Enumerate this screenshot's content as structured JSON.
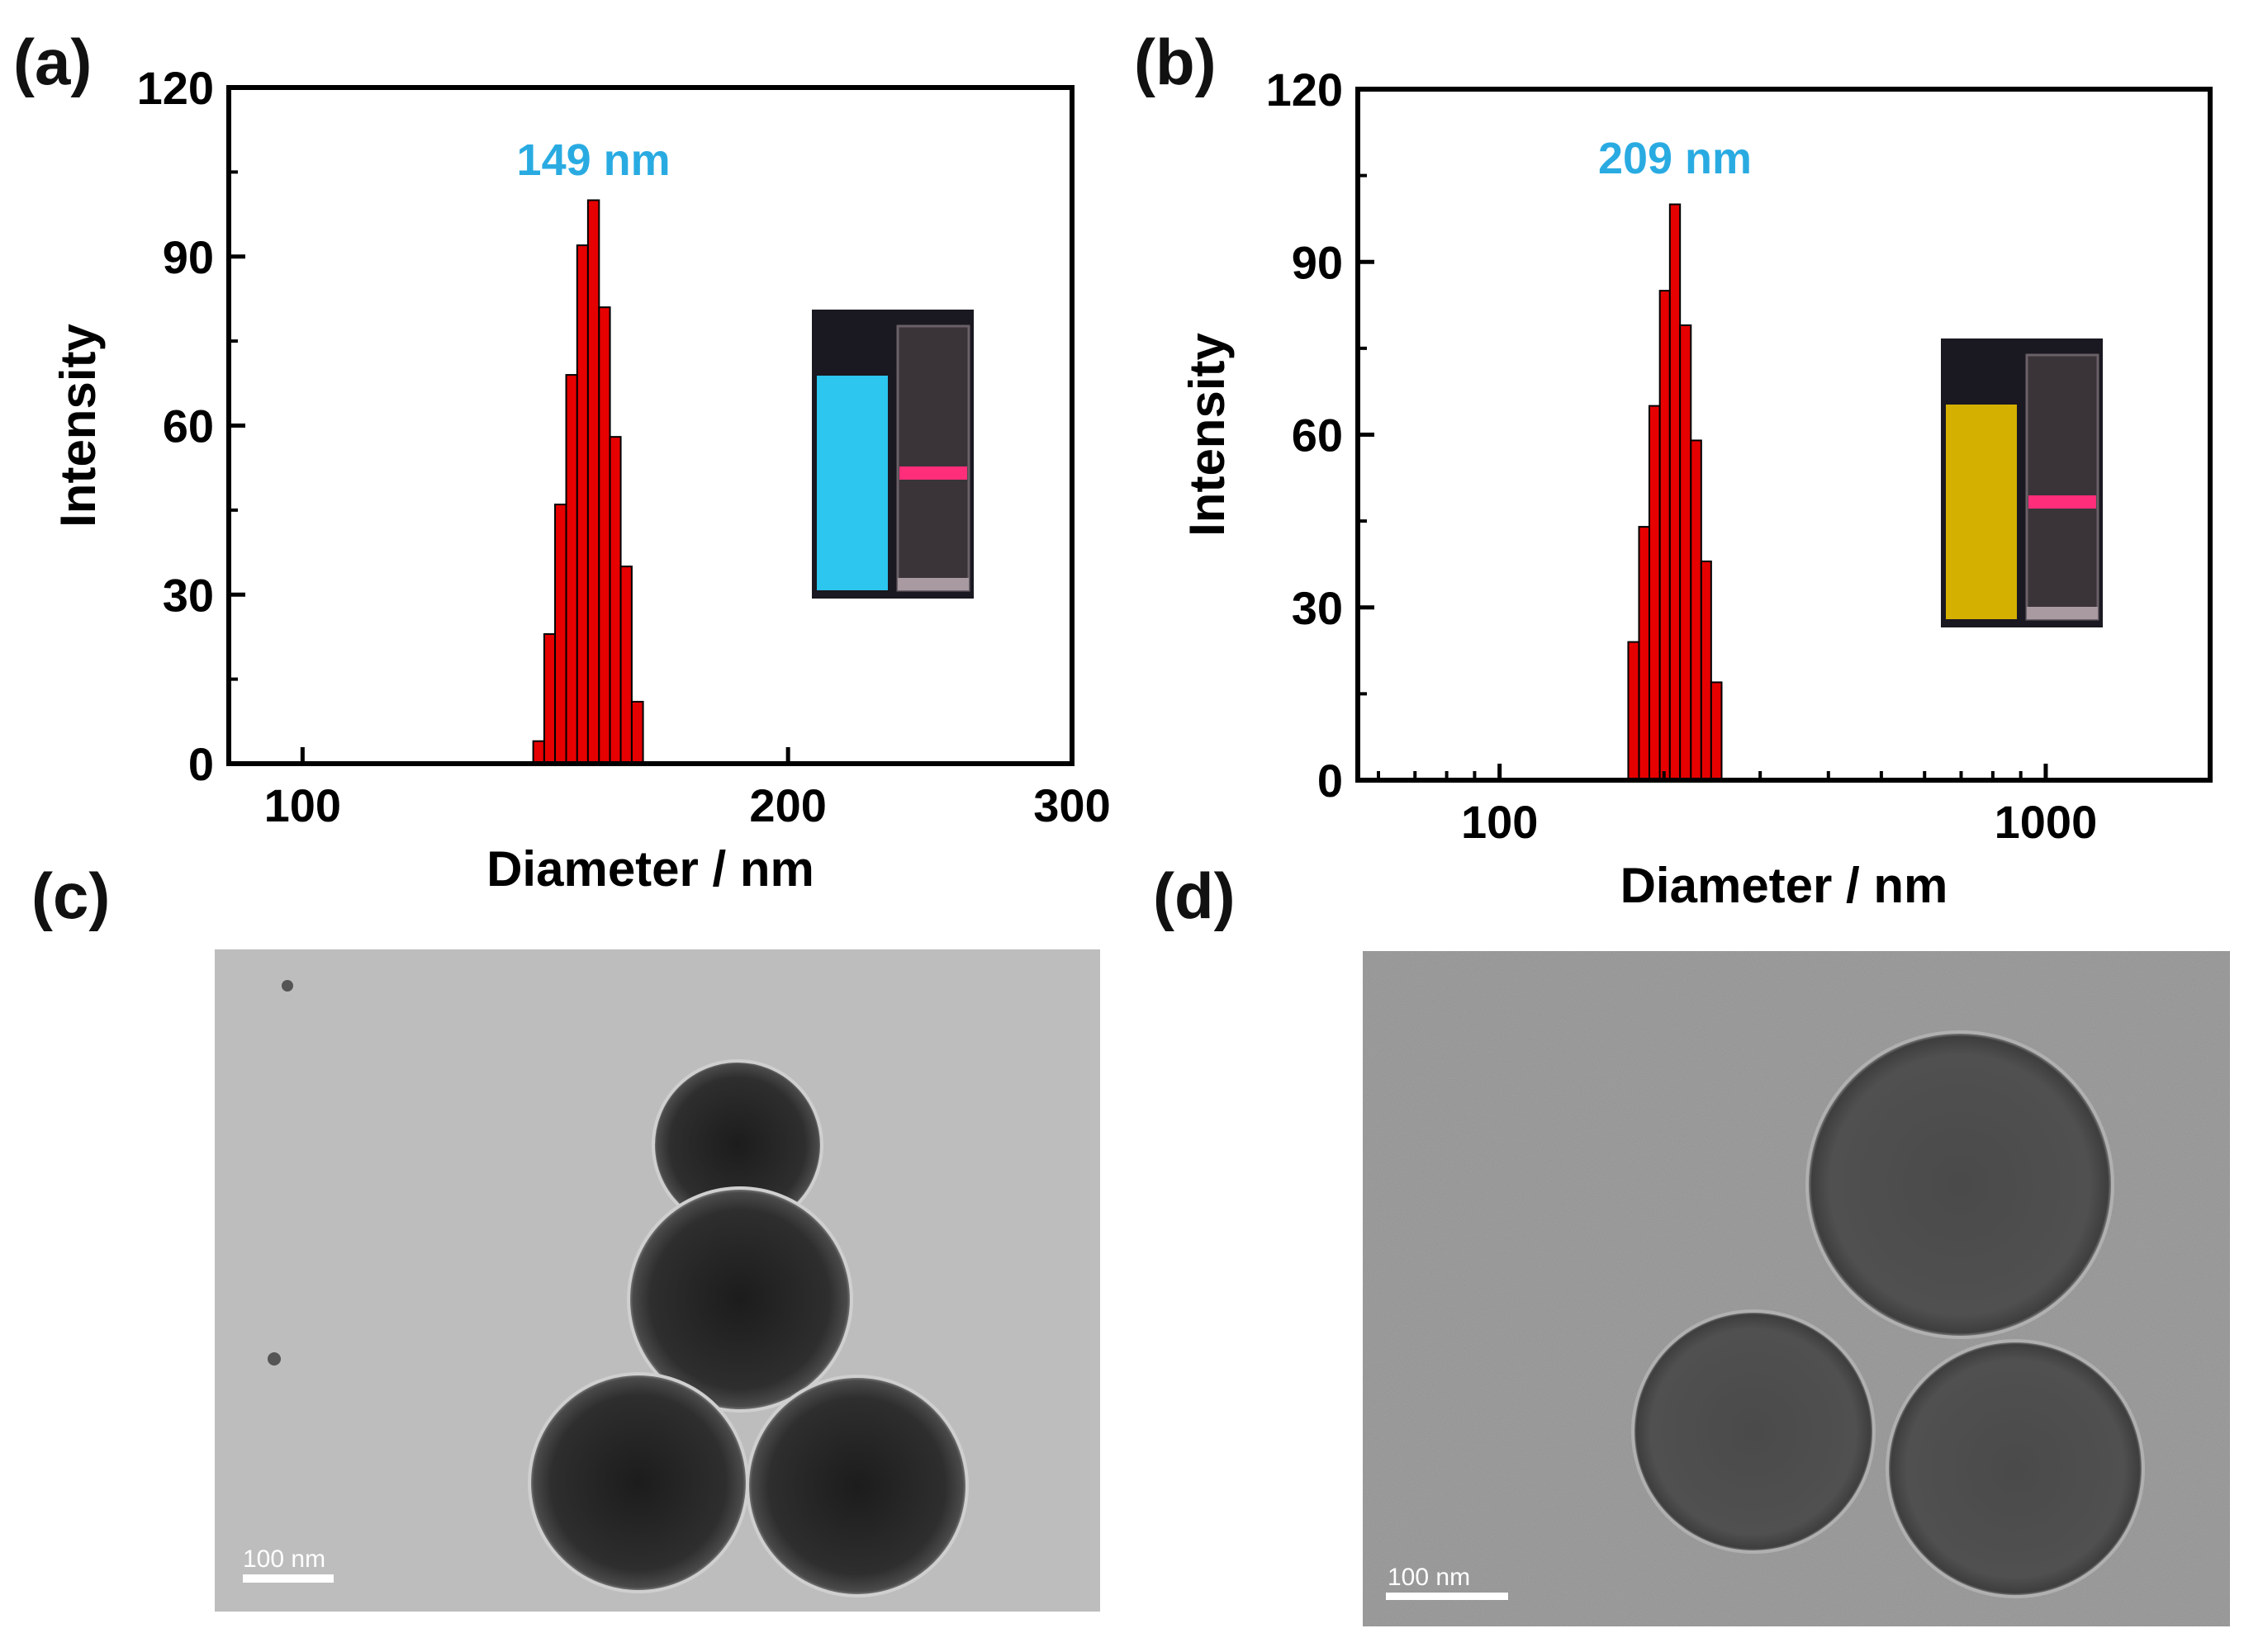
{
  "panels": {
    "a": {
      "label": "(a)"
    },
    "b": {
      "label": "(b)"
    },
    "c": {
      "label": "(c)",
      "scale_bar": "100 nm"
    },
    "d": {
      "label": "(d)",
      "scale_bar": "100 nm"
    }
  },
  "chart_data": [
    {
      "id": "a",
      "type": "bar",
      "xscale": "log",
      "xlabel": "Diameter / nm",
      "ylabel": "Intensity",
      "xlim": [
        90,
        300
      ],
      "ylim": [
        0,
        120
      ],
      "xticks": [
        100,
        200,
        300
      ],
      "yticks": [
        0,
        30,
        60,
        90,
        120
      ],
      "annotation": "149 nm",
      "annotation_color": "#29abe2",
      "bar_color": "#e60000",
      "bins": [
        {
          "x0": 139.0,
          "x1": 141.2,
          "y": 4
        },
        {
          "x0": 141.2,
          "x1": 143.4,
          "y": 23
        },
        {
          "x0": 143.4,
          "x1": 145.7,
          "y": 46
        },
        {
          "x0": 145.7,
          "x1": 148.0,
          "y": 69
        },
        {
          "x0": 148.0,
          "x1": 150.3,
          "y": 92
        },
        {
          "x0": 150.3,
          "x1": 152.7,
          "y": 100
        },
        {
          "x0": 152.7,
          "x1": 155.1,
          "y": 81
        },
        {
          "x0": 155.1,
          "x1": 157.5,
          "y": 58
        },
        {
          "x0": 157.5,
          "x1": 160.0,
          "y": 35
        },
        {
          "x0": 160.0,
          "x1": 162.6,
          "y": 11
        }
      ],
      "inset": {
        "left_liquid": "#2cc6ef",
        "right_band": "#ff2d7a"
      }
    },
    {
      "id": "b",
      "type": "bar",
      "xscale": "log",
      "xlabel": "Diameter / nm",
      "ylabel": "Intensity",
      "xlim": [
        55,
        2000
      ],
      "ylim": [
        0,
        120
      ],
      "xticks": [
        100,
        1000
      ],
      "yticks": [
        0,
        30,
        60,
        90,
        120
      ],
      "annotation": "209 nm",
      "annotation_color": "#29abe2",
      "bar_color": "#e60000",
      "bins": [
        {
          "x0": 172.0,
          "x1": 180.0,
          "y": 24
        },
        {
          "x0": 180.0,
          "x1": 188.0,
          "y": 44
        },
        {
          "x0": 188.0,
          "x1": 196.5,
          "y": 65
        },
        {
          "x0": 196.5,
          "x1": 205.0,
          "y": 85
        },
        {
          "x0": 205.0,
          "x1": 214.0,
          "y": 100
        },
        {
          "x0": 214.0,
          "x1": 224.0,
          "y": 79
        },
        {
          "x0": 224.0,
          "x1": 234.0,
          "y": 59
        },
        {
          "x0": 234.0,
          "x1": 244.0,
          "y": 38
        },
        {
          "x0": 244.0,
          "x1": 255.0,
          "y": 17
        }
      ],
      "inset": {
        "left_liquid": "#d4b000",
        "right_band": "#ff2d7a"
      }
    }
  ]
}
